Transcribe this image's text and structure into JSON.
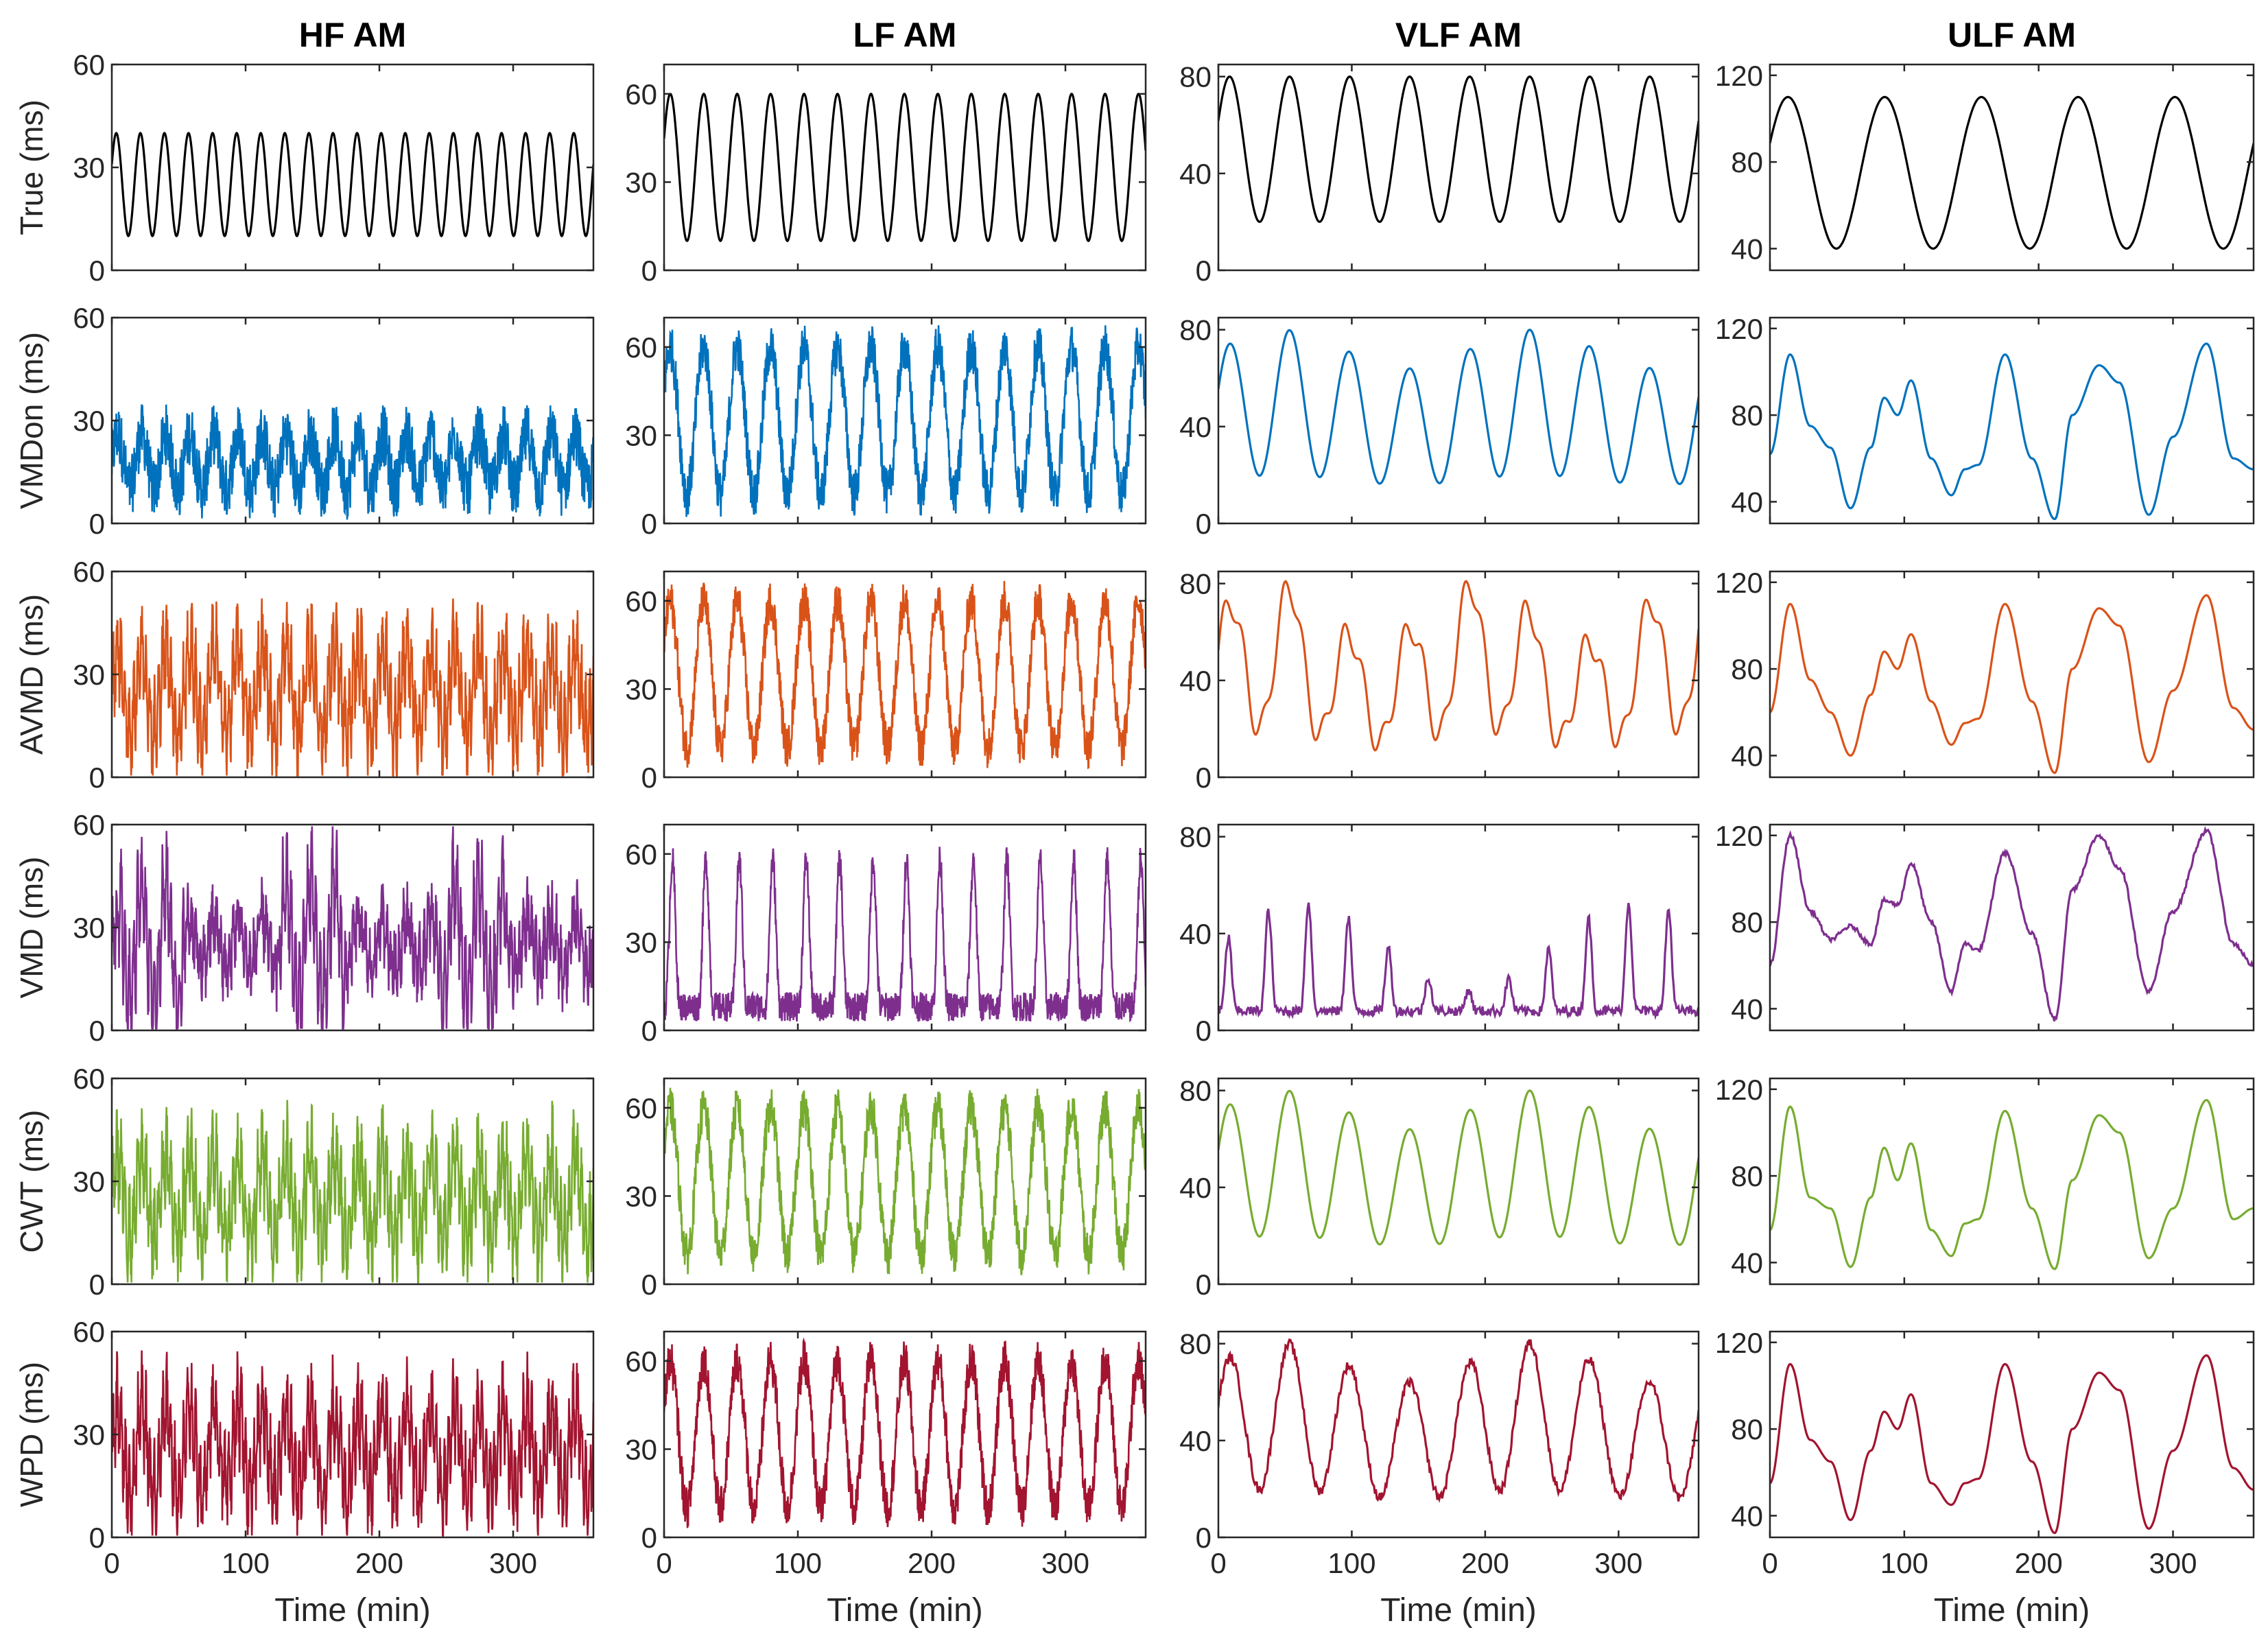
{
  "chart_data": {
    "type": "line",
    "layout": "grid 6 rows x 4 columns",
    "column_titles": [
      "HF AM",
      "LF AM",
      "VLF AM",
      "ULF AM"
    ],
    "row_labels": [
      "True (ms)",
      "VMDon (ms)",
      "AVMD (ms)",
      "VMD (ms)",
      "CWT (ms)",
      "WPD (ms)"
    ],
    "row_colors": [
      "#000000",
      "#0072BD",
      "#D95319",
      "#7E2F8E",
      "#77AC30",
      "#A2142F"
    ],
    "xlabel": "Time (min)",
    "xlim": [
      0,
      360
    ],
    "xticks": [
      0,
      100,
      200,
      300
    ],
    "columns": [
      {
        "name": "HF AM",
        "ylim": [
          0,
          60
        ],
        "yticks": [
          0,
          30,
          60
        ],
        "true_period_min": 18,
        "true_range": [
          10,
          40
        ]
      },
      {
        "name": "LF AM",
        "ylim": [
          0,
          70
        ],
        "yticks": [
          0,
          30,
          60
        ],
        "true_period_min": 25,
        "true_range": [
          10,
          60
        ]
      },
      {
        "name": "VLF AM",
        "ylim": [
          0,
          85
        ],
        "yticks": [
          0,
          40,
          80
        ],
        "true_period_min": 45,
        "true_range": [
          20,
          80
        ]
      },
      {
        "name": "ULF AM",
        "ylim": [
          30,
          125
        ],
        "yticks": [
          40,
          80,
          120
        ],
        "true_period_min": 72,
        "true_range": [
          40,
          110
        ]
      }
    ],
    "smooth_traces": {
      "x": [
        0,
        15,
        30,
        45,
        60,
        75,
        85,
        95,
        105,
        120,
        135,
        145,
        155,
        175,
        195,
        212,
        225,
        245,
        260,
        282,
        300,
        325,
        345,
        360
      ],
      "ulf_VMDon": [
        62,
        108,
        75,
        65,
        37,
        65,
        88,
        80,
        96,
        60,
        43,
        55,
        57,
        108,
        60,
        32,
        80,
        103,
        95,
        34,
        70,
        113,
        60,
        55
      ],
      "ulf_AVMD": [
        60,
        110,
        75,
        60,
        40,
        68,
        88,
        80,
        96,
        65,
        45,
        55,
        57,
        110,
        65,
        32,
        80,
        108,
        100,
        37,
        70,
        114,
        62,
        52
      ],
      "ulf_VMD": [
        60,
        120,
        85,
        72,
        78,
        70,
        90,
        88,
        107,
        80,
        48,
        70,
        67,
        112,
        75,
        35,
        95,
        120,
        105,
        48,
        85,
        122,
        70,
        60
      ],
      "ulf_CWT": [
        55,
        112,
        70,
        65,
        38,
        70,
        93,
        78,
        95,
        55,
        43,
        58,
        60,
        110,
        65,
        37,
        78,
        108,
        100,
        42,
        65,
        115,
        60,
        65
      ],
      "ulf_WPD": [
        55,
        110,
        75,
        65,
        38,
        70,
        88,
        80,
        96,
        55,
        45,
        55,
        57,
        110,
        65,
        32,
        80,
        106,
        98,
        34,
        70,
        114,
        62,
        52
      ]
    }
  }
}
